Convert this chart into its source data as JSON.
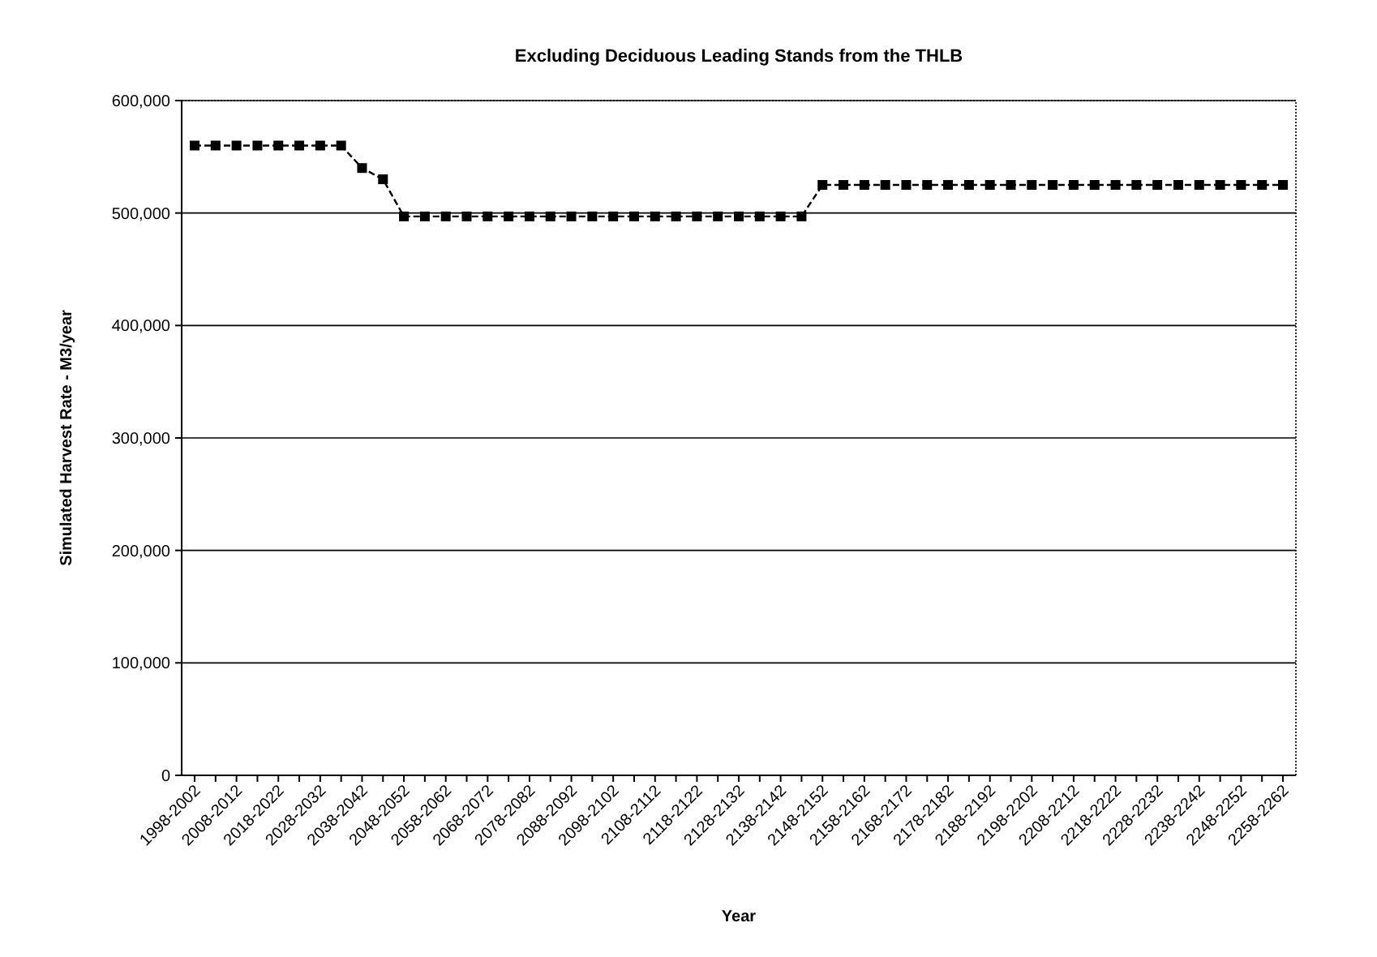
{
  "chart_data": {
    "type": "line",
    "title": "Excluding Deciduous Leading Stands from the THLB",
    "xlabel": "Year",
    "ylabel": "Simulated Harvest Rate - M3/year",
    "categories": [
      "1998-2002",
      null,
      "2008-2012",
      null,
      "2018-2022",
      null,
      "2028-2032",
      null,
      "2038-2042",
      null,
      "2048-2052",
      null,
      "2058-2062",
      null,
      "2068-2072",
      null,
      "2078-2082",
      null,
      "2088-2092",
      null,
      "2098-2102",
      null,
      "2108-2112",
      null,
      "2118-2122",
      null,
      "2128-2132",
      null,
      "2138-2142",
      null,
      "2148-2152",
      null,
      "2158-2162",
      null,
      "2168-2172",
      null,
      "2178-2182",
      null,
      "2188-2192",
      null,
      "2198-2202",
      null,
      "2208-2212",
      null,
      "2218-2222",
      null,
      "2228-2232",
      null,
      "2238-2242",
      null,
      "2248-2252",
      null,
      "2258-2262"
    ],
    "series": [
      {
        "color": "#000000",
        "values": [
          560000,
          560000,
          560000,
          560000,
          560000,
          560000,
          560000,
          560000,
          540000,
          530000,
          497000,
          497000,
          497000,
          497000,
          497000,
          497000,
          497000,
          497000,
          497000,
          497000,
          497000,
          497000,
          497000,
          497000,
          497000,
          497000,
          497000,
          497000,
          497000,
          497000,
          525000,
          525000,
          525000,
          525000,
          525000,
          525000,
          525000,
          525000,
          525000,
          525000,
          525000,
          525000,
          525000,
          525000,
          525000,
          525000,
          525000,
          525000,
          525000,
          525000,
          525000,
          525000,
          525000
        ]
      }
    ],
    "ylim": [
      0,
      600000
    ],
    "yticks": [
      {
        "value": 0,
        "label": "0"
      },
      {
        "value": 100000,
        "label": "100,000"
      },
      {
        "value": 200000,
        "label": "200,000"
      },
      {
        "value": 300000,
        "label": "300,000"
      },
      {
        "value": 400000,
        "label": "400,000"
      },
      {
        "value": 500000,
        "label": "500,000"
      },
      {
        "value": 600000,
        "label": "600,000"
      }
    ],
    "grid": "y",
    "marker": "square",
    "line_style": "dashed"
  }
}
